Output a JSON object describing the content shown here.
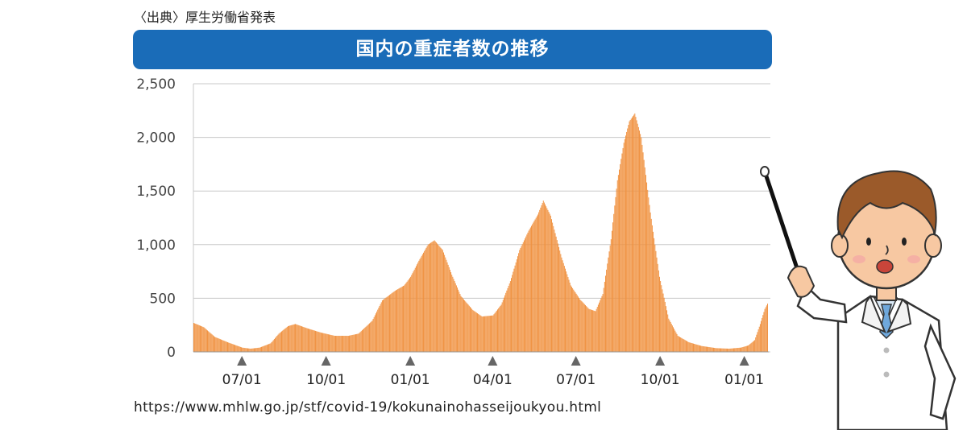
{
  "source_label": "〈出典〉厚生労働省発表",
  "url": "https://www.mhlw.go.jp/stf/covid-19/kokunainohasseijoukyou.html",
  "colors": {
    "banner": "#1a6cb8",
    "bars": "#f0913f",
    "grid": "#c8c8c8",
    "marker": "#666666"
  },
  "chart_data": {
    "type": "bar",
    "title": "国内の重症者数の推移",
    "xlabel": "",
    "ylabel": "",
    "ylim": [
      0,
      2500
    ],
    "y_ticks": [
      {
        "value": 0,
        "label": "0"
      },
      {
        "value": 500,
        "label": "500"
      },
      {
        "value": 1000,
        "label": "1,000"
      },
      {
        "value": 1500,
        "label": "1,500"
      },
      {
        "value": 2000,
        "label": "2,000"
      },
      {
        "value": 2500,
        "label": "2,500"
      }
    ],
    "x_ticks": [
      {
        "date": "2020-07-01",
        "label": "07/01"
      },
      {
        "date": "2020-10-01",
        "label": "10/01"
      },
      {
        "date": "2021-01-01",
        "label": "01/01"
      },
      {
        "date": "2021-04-01",
        "label": "04/01"
      },
      {
        "date": "2021-07-01",
        "label": "07/01"
      },
      {
        "date": "2021-10-01",
        "label": "10/01"
      },
      {
        "date": "2022-01-01",
        "label": "01/01"
      }
    ],
    "x_range": [
      "2020-05-09",
      "2022-01-26"
    ],
    "series": [
      {
        "values_by_date": [
          [
            "2020-05-09",
            270
          ],
          [
            "2020-05-20",
            230
          ],
          [
            "2020-06-01",
            140
          ],
          [
            "2020-06-15",
            90
          ],
          [
            "2020-07-01",
            40
          ],
          [
            "2020-07-10",
            30
          ],
          [
            "2020-07-20",
            40
          ],
          [
            "2020-08-01",
            80
          ],
          [
            "2020-08-10",
            170
          ],
          [
            "2020-08-20",
            240
          ],
          [
            "2020-08-28",
            260
          ],
          [
            "2020-09-10",
            220
          ],
          [
            "2020-09-25",
            180
          ],
          [
            "2020-10-10",
            150
          ],
          [
            "2020-10-25",
            150
          ],
          [
            "2020-11-05",
            170
          ],
          [
            "2020-11-20",
            290
          ],
          [
            "2020-12-01",
            480
          ],
          [
            "2020-12-15",
            570
          ],
          [
            "2020-12-25",
            620
          ],
          [
            "2021-01-01",
            700
          ],
          [
            "2021-01-10",
            850
          ],
          [
            "2021-01-20",
            1000
          ],
          [
            "2021-01-27",
            1040
          ],
          [
            "2021-02-05",
            950
          ],
          [
            "2021-02-15",
            720
          ],
          [
            "2021-02-25",
            520
          ],
          [
            "2021-03-10",
            390
          ],
          [
            "2021-03-20",
            330
          ],
          [
            "2021-04-01",
            340
          ],
          [
            "2021-04-10",
            440
          ],
          [
            "2021-04-20",
            660
          ],
          [
            "2021-04-30",
            950
          ],
          [
            "2021-05-10",
            1130
          ],
          [
            "2021-05-20",
            1280
          ],
          [
            "2021-05-26",
            1410
          ],
          [
            "2021-06-03",
            1270
          ],
          [
            "2021-06-15",
            880
          ],
          [
            "2021-06-25",
            620
          ],
          [
            "2021-07-05",
            490
          ],
          [
            "2021-07-15",
            400
          ],
          [
            "2021-07-22",
            380
          ],
          [
            "2021-07-30",
            540
          ],
          [
            "2021-08-08",
            1050
          ],
          [
            "2021-08-15",
            1600
          ],
          [
            "2021-08-22",
            1950
          ],
          [
            "2021-08-28",
            2150
          ],
          [
            "2021-09-03",
            2223
          ],
          [
            "2021-09-10",
            2000
          ],
          [
            "2021-09-20",
            1300
          ],
          [
            "2021-09-30",
            700
          ],
          [
            "2021-10-10",
            310
          ],
          [
            "2021-10-20",
            150
          ],
          [
            "2021-11-01",
            90
          ],
          [
            "2021-11-15",
            55
          ],
          [
            "2021-12-01",
            35
          ],
          [
            "2021-12-15",
            30
          ],
          [
            "2021-12-28",
            40
          ],
          [
            "2022-01-05",
            60
          ],
          [
            "2022-01-12",
            110
          ],
          [
            "2022-01-18",
            260
          ],
          [
            "2022-01-23",
            400
          ],
          [
            "2022-01-26",
            450
          ]
        ]
      }
    ]
  }
}
